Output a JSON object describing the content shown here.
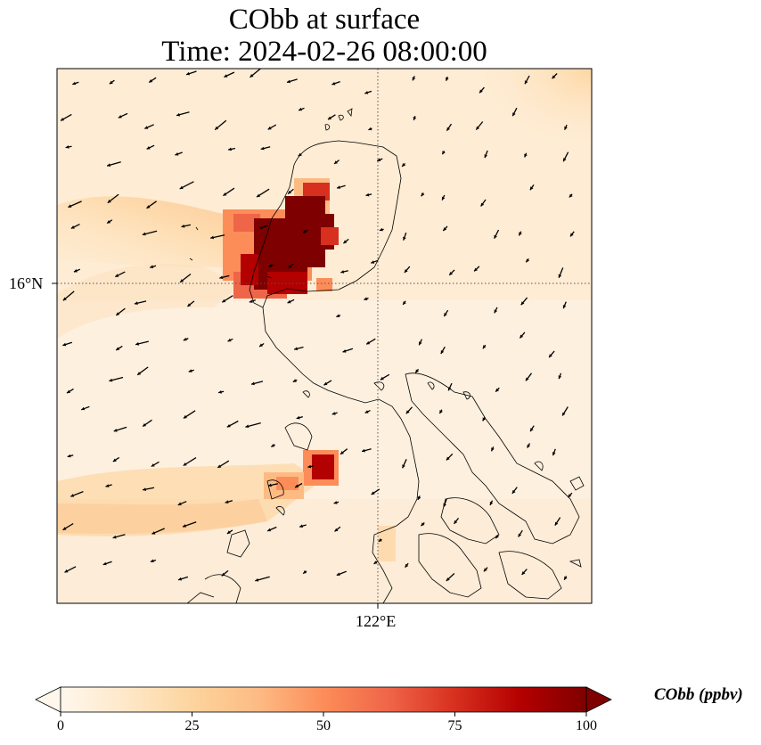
{
  "title": {
    "line1": "CObb at surface",
    "line2": "Time: 2024-02-26 08:00:00"
  },
  "map": {
    "variable": "CObb",
    "level": "surface",
    "time": "2024-02-26 08:00:00",
    "lon_range": [
      117,
      125.5
    ],
    "lat_range": [
      10,
      18.5
    ],
    "gridlines": {
      "lon": [
        122
      ],
      "lat": [
        16
      ],
      "style": "dotted"
    },
    "lon_tick_label": "122°E",
    "lat_tick_label": "16°N",
    "overlay": "wind-vectors",
    "coastlines": true
  },
  "colorbar": {
    "label": "CObb (ppbv)",
    "min": 0,
    "max": 100,
    "ticks": [
      "0",
      "25",
      "50",
      "75",
      "100"
    ],
    "extend": "both",
    "colormap": "OrRd",
    "colors": [
      "#fff7ec",
      "#fee8c8",
      "#fdd49e",
      "#fdbb84",
      "#fc8d59",
      "#ef6548",
      "#d7301f",
      "#b30000",
      "#7f0000"
    ]
  }
}
